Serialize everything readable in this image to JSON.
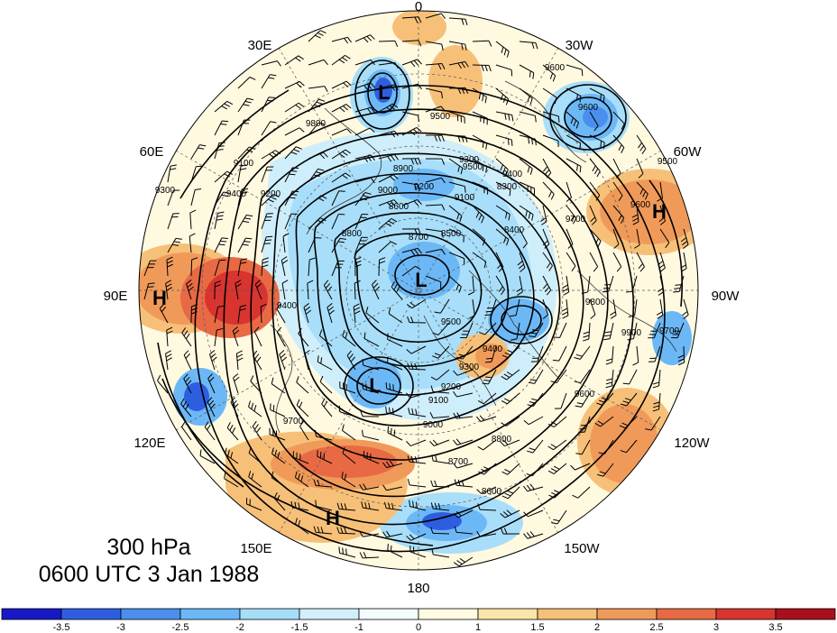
{
  "caption": {
    "level": "300 hPa",
    "time": "0600 UTC 3 Jan 1988"
  },
  "longitude_labels": [
    "0",
    "30W",
    "60W",
    "90W",
    "120W",
    "150W",
    "180",
    "150E",
    "120E",
    "90E",
    "60E",
    "30E"
  ],
  "centers": [
    {
      "type": "L",
      "lon_label": "near 30E, mid-latitude",
      "name": "L"
    },
    {
      "type": "L",
      "name": "L"
    },
    {
      "type": "L",
      "name": "L"
    },
    {
      "type": "H",
      "name": "H"
    },
    {
      "type": "H",
      "name": "H"
    },
    {
      "type": "H",
      "name": "H"
    }
  ],
  "contour_labels": [
    "9600",
    "9500",
    "9600",
    "9500",
    "9400",
    "9300",
    "9200",
    "9100",
    "9000",
    "8900",
    "8800",
    "8700",
    "8600",
    "8500",
    "8400",
    "8300",
    "9100",
    "9200",
    "9300",
    "9400",
    "9500",
    "9600",
    "9700",
    "9800",
    "9900",
    "9700",
    "9600",
    "9500",
    "9400",
    "9300",
    "9200",
    "9100",
    "9000",
    "8800",
    "8700",
    "8600",
    "9800",
    "9400",
    "9700"
  ],
  "colorbar": {
    "ticks": [
      "-3.5",
      "-3",
      "-2.5",
      "-2",
      "-1.5",
      "-1",
      "0",
      "1",
      "1.5",
      "2",
      "2.5",
      "3",
      "3.5"
    ],
    "colors": [
      "#1818c8",
      "#2e5ee0",
      "#4a8fee",
      "#6cb8f6",
      "#a6def9",
      "#d2f0fb",
      "#fffbe2",
      "#fbe6a8",
      "#f7c078",
      "#f09a5a",
      "#e86a44",
      "#d83430",
      "#a8101e"
    ]
  }
}
